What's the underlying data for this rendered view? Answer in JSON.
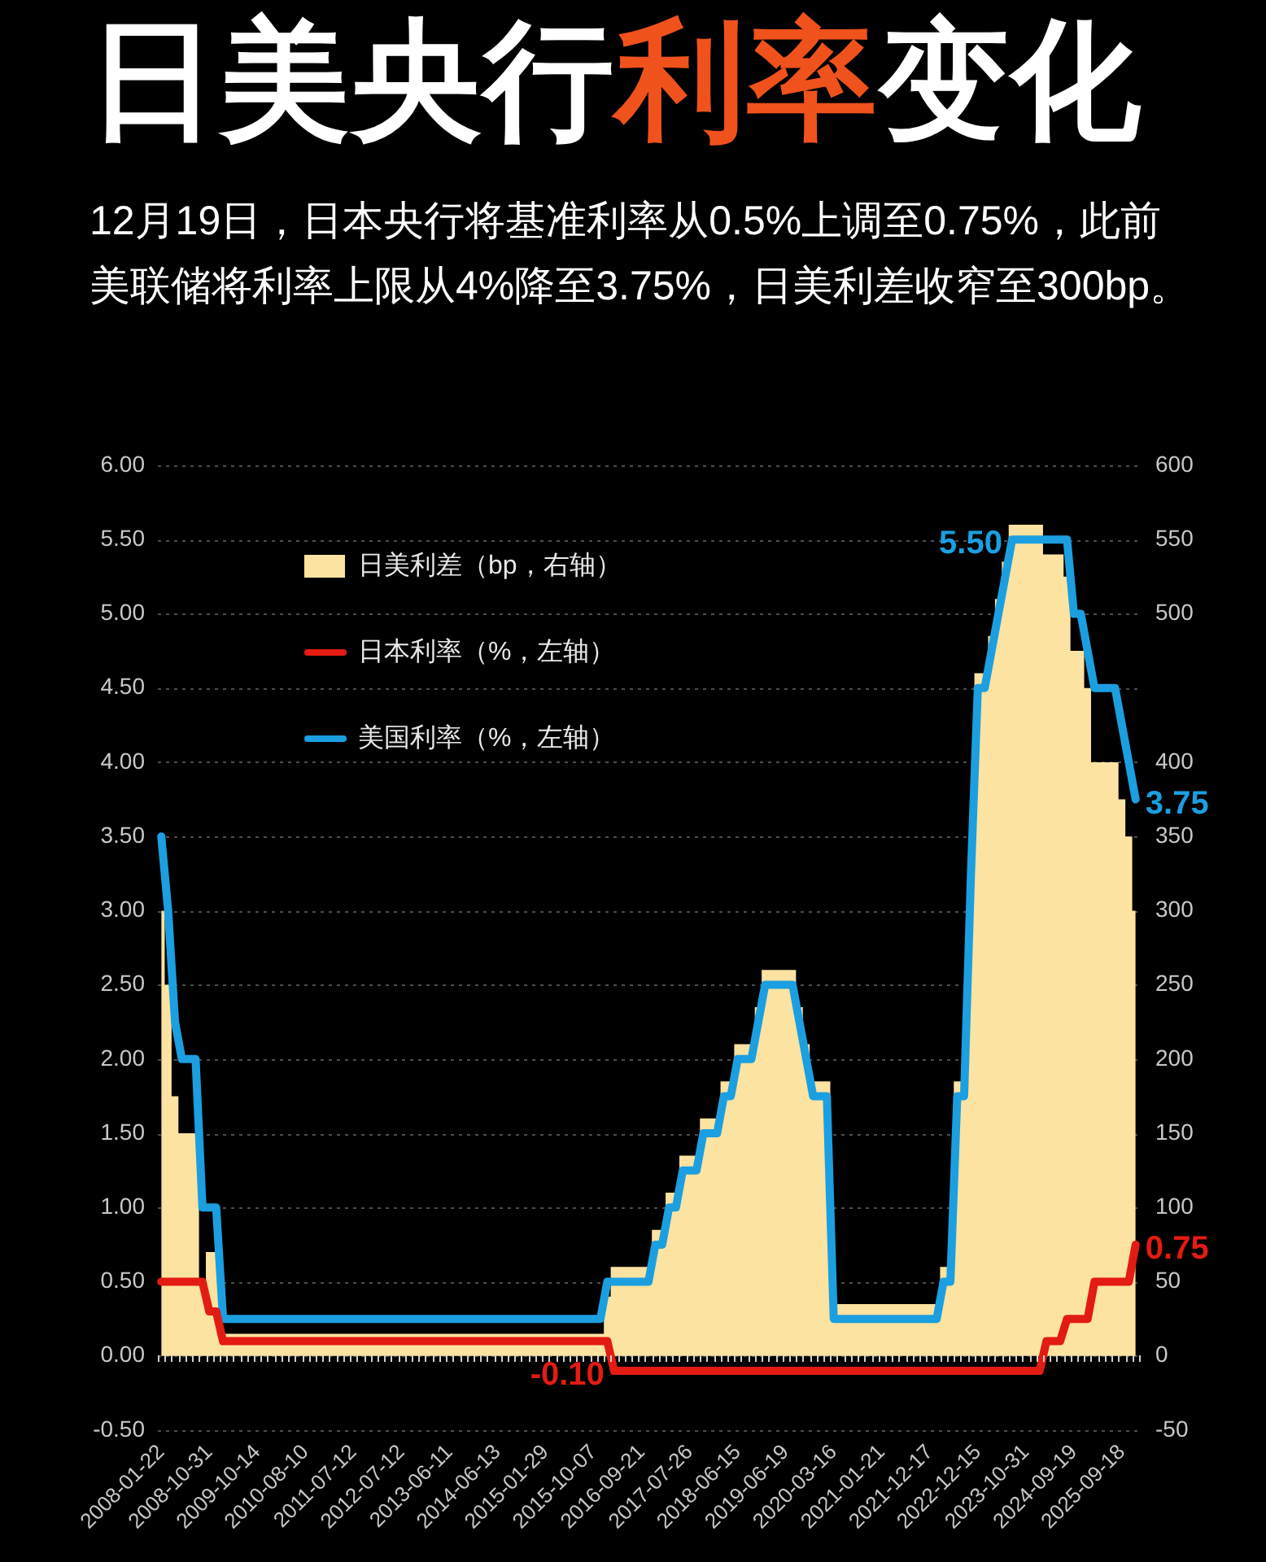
{
  "chart_data": {
    "type": "line",
    "title": "日美央行利率变化",
    "subtitle": "12月19日，日本央行将基准利率从0.5%上调至0.75%，此前美联储将利率上限从4%降至3.75%，日美利差收窄至300bp。",
    "categories": [
      "2008-01-22",
      null,
      null,
      null,
      null,
      null,
      null,
      "2008-10-31",
      null,
      null,
      null,
      null,
      null,
      null,
      "2009-10-14",
      null,
      null,
      null,
      null,
      null,
      null,
      "2010-08-10",
      null,
      null,
      null,
      null,
      null,
      null,
      "2011-07-12",
      null,
      null,
      null,
      null,
      null,
      null,
      "2012-07-12",
      null,
      null,
      null,
      null,
      null,
      null,
      "2013-06-11",
      null,
      null,
      null,
      null,
      null,
      null,
      "2014-06-13",
      null,
      null,
      null,
      null,
      null,
      null,
      "2015-01-29",
      null,
      null,
      null,
      null,
      null,
      null,
      "2015-10-07",
      null,
      null,
      null,
      null,
      null,
      null,
      "2016-09-21",
      null,
      null,
      null,
      null,
      null,
      null,
      "2017-07-26",
      null,
      null,
      null,
      null,
      null,
      null,
      "2018-06-15",
      null,
      null,
      null,
      null,
      null,
      null,
      "2019-06-19",
      null,
      null,
      null,
      null,
      null,
      null,
      "2020-03-16",
      null,
      null,
      null,
      null,
      null,
      null,
      "2021-01-21",
      null,
      null,
      null,
      null,
      null,
      null,
      "2021-12-17",
      null,
      null,
      null,
      null,
      null,
      null,
      "2022-12-15",
      null,
      null,
      null,
      null,
      null,
      null,
      "2023-10-31",
      null,
      null,
      null,
      null,
      null,
      null,
      "2024-09-19",
      null,
      null,
      null,
      null,
      null,
      null,
      "2025-09-18",
      null,
      null
    ],
    "series": [
      {
        "name": "日美利差（bp，右轴）",
        "type": "area",
        "axis": "y2",
        "color": "#fde3a1",
        "values": [
          300,
          250,
          175,
          150,
          150,
          150,
          50,
          70,
          70,
          15,
          15,
          15,
          15,
          15,
          15,
          15,
          15,
          15,
          15,
          15,
          15,
          15,
          15,
          15,
          15,
          15,
          15,
          15,
          15,
          15,
          15,
          15,
          15,
          15,
          15,
          15,
          15,
          15,
          15,
          15,
          15,
          15,
          15,
          15,
          15,
          15,
          15,
          15,
          15,
          15,
          15,
          15,
          15,
          15,
          15,
          15,
          15,
          15,
          15,
          15,
          15,
          15,
          15,
          15,
          15,
          40,
          60,
          60,
          60,
          60,
          60,
          60,
          85,
          85,
          110,
          110,
          135,
          135,
          135,
          160,
          160,
          160,
          185,
          185,
          210,
          210,
          210,
          235,
          260,
          260,
          260,
          260,
          260,
          235,
          210,
          185,
          185,
          185,
          35,
          35,
          35,
          35,
          35,
          35,
          35,
          35,
          35,
          35,
          35,
          35,
          35,
          35,
          35,
          35,
          60,
          60,
          185,
          185,
          335,
          460,
          460,
          485,
          510,
          535,
          560,
          560,
          560,
          560,
          560,
          540,
          540,
          540,
          525,
          475,
          475,
          450,
          400,
          400,
          400,
          400,
          375,
          350,
          300
        ]
      },
      {
        "name": "日本利率（%，左轴）",
        "color": "#e31b12",
        "values": [
          0.5,
          0.5,
          0.5,
          0.5,
          0.5,
          0.5,
          0.5,
          0.3,
          0.3,
          0.1,
          0.1,
          0.1,
          0.1,
          0.1,
          0.1,
          0.1,
          0.1,
          0.1,
          0.1,
          0.1,
          0.1,
          0.1,
          0.1,
          0.1,
          0.1,
          0.1,
          0.1,
          0.1,
          0.1,
          0.1,
          0.1,
          0.1,
          0.1,
          0.1,
          0.1,
          0.1,
          0.1,
          0.1,
          0.1,
          0.1,
          0.1,
          0.1,
          0.1,
          0.1,
          0.1,
          0.1,
          0.1,
          0.1,
          0.1,
          0.1,
          0.1,
          0.1,
          0.1,
          0.1,
          0.1,
          0.1,
          0.1,
          0.1,
          0.1,
          0.1,
          0.1,
          0.1,
          0.1,
          0.1,
          0.1,
          0.1,
          -0.1,
          -0.1,
          -0.1,
          -0.1,
          -0.1,
          -0.1,
          -0.1,
          -0.1,
          -0.1,
          -0.1,
          -0.1,
          -0.1,
          -0.1,
          -0.1,
          -0.1,
          -0.1,
          -0.1,
          -0.1,
          -0.1,
          -0.1,
          -0.1,
          -0.1,
          -0.1,
          -0.1,
          -0.1,
          -0.1,
          -0.1,
          -0.1,
          -0.1,
          -0.1,
          -0.1,
          -0.1,
          -0.1,
          -0.1,
          -0.1,
          -0.1,
          -0.1,
          -0.1,
          -0.1,
          -0.1,
          -0.1,
          -0.1,
          -0.1,
          -0.1,
          -0.1,
          -0.1,
          -0.1,
          -0.1,
          -0.1,
          -0.1,
          -0.1,
          -0.1,
          -0.1,
          -0.1,
          -0.1,
          -0.1,
          -0.1,
          -0.1,
          -0.1,
          -0.1,
          -0.1,
          -0.1,
          -0.1,
          0.1,
          0.1,
          0.1,
          0.25,
          0.25,
          0.25,
          0.25,
          0.5,
          0.5,
          0.5,
          0.5,
          0.5,
          0.5,
          0.75
        ],
        "value_labels": [
          null,
          null,
          null,
          null,
          null,
          null,
          null,
          null,
          null,
          null,
          null,
          null,
          null,
          null,
          null,
          null,
          null,
          null,
          null,
          null,
          null,
          null,
          null,
          null,
          null,
          null,
          null,
          null,
          null,
          null,
          null,
          null,
          null,
          null,
          null,
          null,
          null,
          null,
          null,
          null,
          null,
          null,
          null,
          null,
          null,
          null,
          null,
          null,
          null,
          null,
          null,
          null,
          null,
          null,
          null,
          null,
          null,
          null,
          null,
          null,
          null,
          null,
          null,
          null,
          null,
          null,
          "-0.10",
          null,
          null,
          null,
          null,
          null,
          null,
          null,
          null,
          null,
          null,
          null,
          null,
          null,
          null,
          null,
          null,
          null,
          null,
          null,
          null,
          null,
          null,
          null,
          null,
          null,
          null,
          null,
          null,
          null,
          null,
          null,
          null,
          null,
          null,
          null,
          null,
          null,
          null,
          null,
          null,
          null,
          null,
          null,
          null,
          null,
          null,
          null,
          null,
          null,
          null,
          null,
          null,
          null,
          null,
          null,
          null,
          null,
          null,
          null,
          null,
          null,
          null,
          null,
          null,
          null,
          null,
          null,
          null,
          null,
          null,
          null,
          null,
          null,
          null,
          null,
          "0.75"
        ]
      },
      {
        "name": "美国利率（%，左轴）",
        "color": "#1b9fe0",
        "values": [
          3.5,
          3,
          2.25,
          2,
          2,
          2,
          1,
          1,
          1,
          0.25,
          0.25,
          0.25,
          0.25,
          0.25,
          0.25,
          0.25,
          0.25,
          0.25,
          0.25,
          0.25,
          0.25,
          0.25,
          0.25,
          0.25,
          0.25,
          0.25,
          0.25,
          0.25,
          0.25,
          0.25,
          0.25,
          0.25,
          0.25,
          0.25,
          0.25,
          0.25,
          0.25,
          0.25,
          0.25,
          0.25,
          0.25,
          0.25,
          0.25,
          0.25,
          0.25,
          0.25,
          0.25,
          0.25,
          0.25,
          0.25,
          0.25,
          0.25,
          0.25,
          0.25,
          0.25,
          0.25,
          0.25,
          0.25,
          0.25,
          0.25,
          0.25,
          0.25,
          0.25,
          0.25,
          0.25,
          0.5,
          0.5,
          0.5,
          0.5,
          0.5,
          0.5,
          0.5,
          0.75,
          0.75,
          1,
          1,
          1.25,
          1.25,
          1.25,
          1.5,
          1.5,
          1.5,
          1.75,
          1.75,
          2,
          2,
          2,
          2.25,
          2.5,
          2.5,
          2.5,
          2.5,
          2.5,
          2.25,
          2,
          1.75,
          1.75,
          1.75,
          0.25,
          0.25,
          0.25,
          0.25,
          0.25,
          0.25,
          0.25,
          0.25,
          0.25,
          0.25,
          0.25,
          0.25,
          0.25,
          0.25,
          0.25,
          0.25,
          0.5,
          0.5,
          1.75,
          1.75,
          3.25,
          4.5,
          4.5,
          4.75,
          5,
          5.25,
          5.5,
          5.5,
          5.5,
          5.5,
          5.5,
          5.5,
          5.5,
          5.5,
          5.5,
          5,
          5,
          4.75,
          4.5,
          4.5,
          4.5,
          4.5,
          4.25,
          4,
          3.75
        ],
        "value_labels": [
          null,
          null,
          null,
          null,
          null,
          null,
          null,
          null,
          null,
          null,
          null,
          null,
          null,
          null,
          null,
          null,
          null,
          null,
          null,
          null,
          null,
          null,
          null,
          null,
          null,
          null,
          null,
          null,
          null,
          null,
          null,
          null,
          null,
          null,
          null,
          null,
          null,
          null,
          null,
          null,
          null,
          null,
          null,
          null,
          null,
          null,
          null,
          null,
          null,
          null,
          null,
          null,
          null,
          null,
          null,
          null,
          null,
          null,
          null,
          null,
          null,
          null,
          null,
          null,
          null,
          null,
          null,
          null,
          null,
          null,
          null,
          null,
          null,
          null,
          null,
          null,
          null,
          null,
          null,
          null,
          null,
          null,
          null,
          null,
          null,
          null,
          null,
          null,
          null,
          null,
          null,
          null,
          null,
          null,
          null,
          null,
          null,
          null,
          null,
          null,
          null,
          null,
          null,
          null,
          null,
          null,
          null,
          null,
          null,
          null,
          null,
          null,
          null,
          null,
          null,
          null,
          null,
          null,
          null,
          null,
          null,
          null,
          null,
          null,
          "5.50",
          null,
          null,
          null,
          null,
          null,
          null,
          null,
          null,
          null,
          null,
          null,
          null,
          null,
          null,
          null,
          null,
          null,
          "3.75"
        ]
      }
    ],
    "ylim": [
      -0.5,
      6
    ],
    "yticks": [
      {
        "value": -0.5,
        "label": "-0.50"
      },
      {
        "value": 0,
        "label": "0.00"
      },
      {
        "value": 0.5,
        "label": "0.50"
      },
      {
        "value": 1,
        "label": "1.00"
      },
      {
        "value": 1.5,
        "label": "1.50"
      },
      {
        "value": 2,
        "label": "2.00"
      },
      {
        "value": 2.5,
        "label": "2.50"
      },
      {
        "value": 3,
        "label": "3.00"
      },
      {
        "value": 3.5,
        "label": "3.50"
      },
      {
        "value": 4,
        "label": "4.00"
      },
      {
        "value": 4.5,
        "label": "4.50"
      },
      {
        "value": 5,
        "label": "5.00"
      },
      {
        "value": 5.5,
        "label": "5.50"
      },
      {
        "value": 6,
        "label": "6.00"
      }
    ],
    "y2lim": [
      -50,
      600
    ],
    "y2ticks": [
      -50,
      0,
      50,
      100,
      150,
      200,
      250,
      300,
      350,
      400,
      500,
      550,
      600
    ],
    "grid": "y",
    "legend": "top left",
    "marker": "none"
  }
}
